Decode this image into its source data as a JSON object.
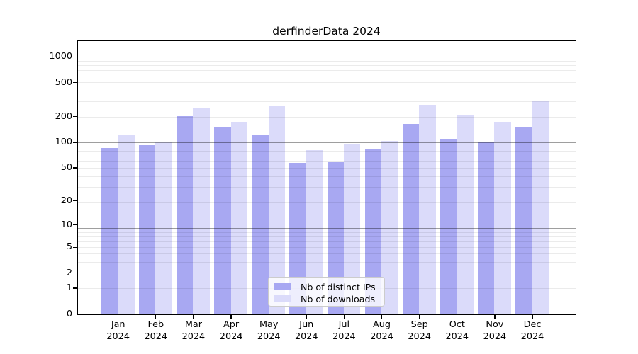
{
  "title": "derfinderData 2024",
  "chart_data": {
    "type": "bar",
    "title": "derfinderData 2024",
    "categories": [
      "Jan",
      "Feb",
      "Mar",
      "Apr",
      "May",
      "Jun",
      "Jul",
      "Aug",
      "Sep",
      "Oct",
      "Nov",
      "Dec"
    ],
    "year_label": "2024",
    "series": [
      {
        "name": "Nb of distinct IPs",
        "color": "#a8a8f2",
        "values": [
          87,
          93,
          204,
          154,
          122,
          58,
          59,
          85,
          167,
          109,
          103,
          150
        ]
      },
      {
        "name": "Nb of downloads",
        "color": "#dbdbfa",
        "values": [
          125,
          102,
          252,
          174,
          269,
          81,
          98,
          105,
          274,
          215,
          172,
          311
        ]
      }
    ],
    "y_ticks": [
      0,
      1,
      2,
      5,
      10,
      20,
      50,
      100,
      200,
      500,
      1000
    ],
    "y_scale": "log1p",
    "ylim": [
      0,
      1519
    ],
    "xlabel": "",
    "ylabel": "",
    "grid": "major-and-minor, drawn over bars",
    "legend_position": "bottom-center"
  },
  "colors": {
    "series_dark": "#a8a8f2",
    "series_light": "#dbdbfa",
    "grid_major": "rgba(0,0,0,0.38)",
    "grid_minor": "rgba(0,0,0,0.08)",
    "spine": "#000000",
    "background": "#ffffff"
  }
}
